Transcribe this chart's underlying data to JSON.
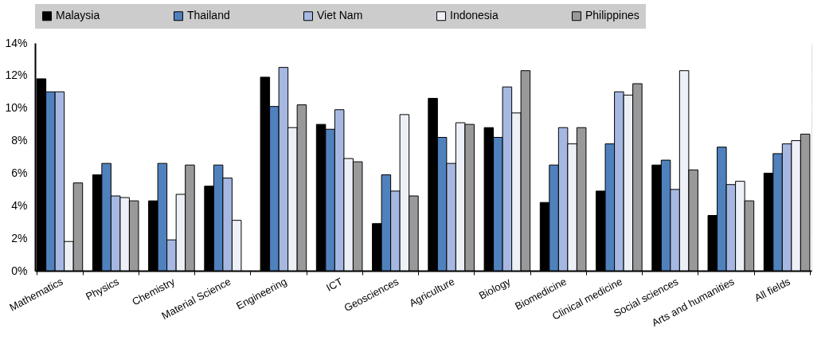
{
  "chart_data": {
    "type": "bar",
    "categories": [
      "Mathematics",
      "Physics",
      "Chemistry",
      "Material Science",
      "Engineering",
      "ICT",
      "Geosciences",
      "Agriculture",
      "Biology",
      "Biomedicine",
      "Clinical medicine",
      "Social sciences",
      "Arts and humanities",
      "All fields"
    ],
    "series": [
      {
        "name": "Malaysia",
        "color": "#000000",
        "values": [
          11.8,
          5.9,
          4.3,
          5.2,
          11.9,
          9.0,
          2.9,
          10.6,
          8.8,
          4.2,
          4.9,
          6.5,
          3.4,
          6.0
        ]
      },
      {
        "name": "Thailand",
        "color": "#4f81bd",
        "values": [
          11.0,
          6.6,
          6.6,
          6.5,
          10.1,
          8.7,
          5.9,
          8.2,
          8.2,
          6.5,
          7.8,
          6.8,
          7.6,
          7.2
        ]
      },
      {
        "name": "Viet Nam",
        "color": "#a6b8e2",
        "values": [
          11.0,
          4.6,
          1.9,
          5.7,
          12.5,
          9.9,
          4.9,
          6.6,
          11.3,
          8.8,
          11.0,
          5.0,
          5.3,
          7.8
        ]
      },
      {
        "name": "Indonesia",
        "color": "#eef0f8",
        "values": [
          1.8,
          4.5,
          4.7,
          3.1,
          8.8,
          6.9,
          9.6,
          9.1,
          9.7,
          7.8,
          10.8,
          12.3,
          5.5,
          8.0
        ]
      },
      {
        "name": "Philippines",
        "color": "#999999",
        "values": [
          5.4,
          4.3,
          6.5,
          null,
          10.2,
          6.7,
          4.6,
          9.0,
          12.3,
          8.8,
          11.5,
          6.2,
          4.3,
          8.4
        ]
      }
    ],
    "ylim": [
      0,
      14
    ],
    "yticks": [
      {
        "value": 0,
        "label": "0%"
      },
      {
        "value": 2,
        "label": "2%"
      },
      {
        "value": 4,
        "label": "4%"
      },
      {
        "value": 6,
        "label": "6%"
      },
      {
        "value": 8,
        "label": "8%"
      },
      {
        "value": 10,
        "label": "10%"
      },
      {
        "value": 12,
        "label": "12%"
      },
      {
        "value": 14,
        "label": "14%"
      }
    ],
    "grid": "y",
    "legend": "top"
  }
}
